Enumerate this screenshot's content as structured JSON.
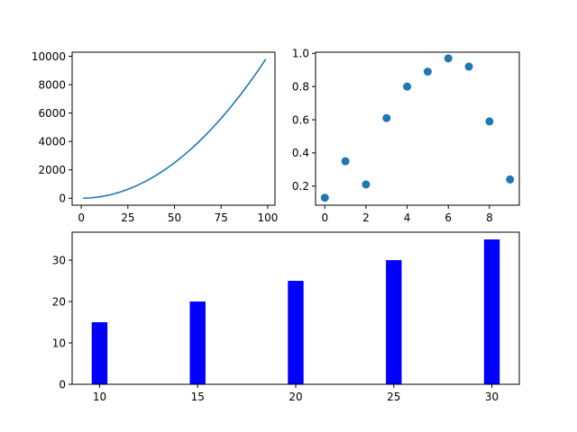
{
  "chart_data": [
    {
      "type": "line",
      "color": "#1f77b4",
      "xlim": [
        -4.9,
        103.9
      ],
      "ylim": [
        -490,
        10290
      ],
      "xticks": [
        0,
        25,
        50,
        75,
        100
      ],
      "yticks": [
        0,
        2000,
        4000,
        6000,
        8000,
        10000
      ],
      "series": [
        {
          "x": [
            1,
            5,
            10,
            15,
            20,
            25,
            30,
            35,
            40,
            45,
            50,
            55,
            60,
            65,
            70,
            75,
            80,
            85,
            90,
            95,
            99
          ],
          "y": [
            1,
            25,
            100,
            225,
            400,
            625,
            900,
            1225,
            1600,
            2025,
            2500,
            3025,
            3600,
            4225,
            4900,
            5625,
            6400,
            7225,
            8100,
            9025,
            9801
          ]
        }
      ]
    },
    {
      "type": "scatter",
      "color": "#1f77b4",
      "xlim": [
        -0.45,
        9.45
      ],
      "ylim": [
        0.085,
        1.007
      ],
      "xticks": [
        0,
        2,
        4,
        6,
        8
      ],
      "yticks": [
        0.2,
        0.4,
        0.6,
        0.8,
        1.0
      ],
      "ytick_labels": [
        "0.2",
        "0.4",
        "0.6",
        "0.8",
        "1.0"
      ],
      "series": [
        {
          "x": [
            0,
            1,
            2,
            3,
            4,
            5,
            6,
            7,
            8,
            9
          ],
          "y": [
            0.13,
            0.35,
            0.21,
            0.61,
            0.8,
            0.89,
            0.97,
            0.92,
            0.59,
            0.24
          ]
        }
      ]
    },
    {
      "type": "bar",
      "color": "#0000ff",
      "xlim": [
        8.6,
        31.4
      ],
      "ylim": [
        0,
        36.75
      ],
      "xticks": [
        10,
        15,
        20,
        25,
        30
      ],
      "yticks": [
        0,
        10,
        20,
        30
      ],
      "bar_width": 0.8,
      "categories": [
        10,
        15,
        20,
        25,
        30
      ],
      "values": [
        15,
        20,
        25,
        30,
        35
      ]
    }
  ]
}
